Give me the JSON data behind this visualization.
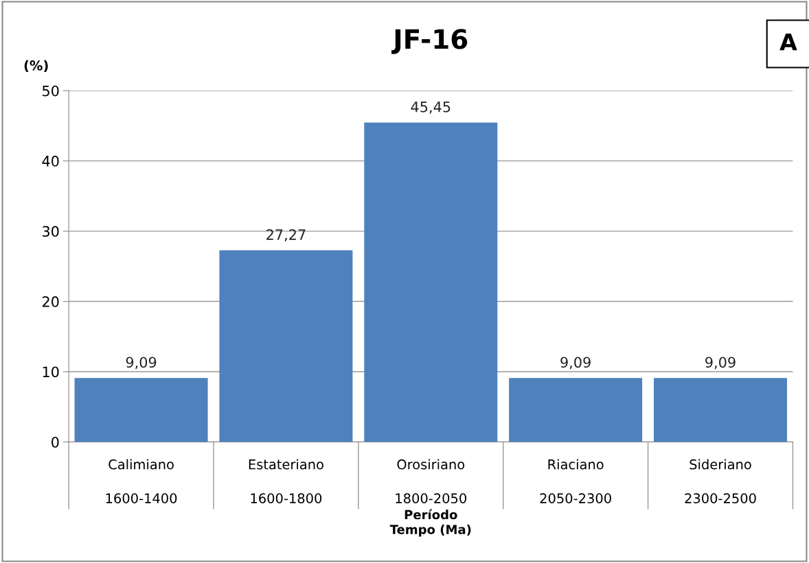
{
  "chart_data": {
    "type": "bar",
    "title": "JF-16",
    "ylabel": "(%)",
    "xlabel": "Período\nTempo (Ma)",
    "annotations": [
      "A"
    ],
    "categories": [
      "Calimiano\n\n1600-1400",
      "Estateriano\n\n1600-1800",
      "Orosiriano\n\n1800-2050",
      "Riaciano\n\n2050-2300",
      "Sideriano\n\n2300-2500"
    ],
    "values": [
      9.09,
      27.27,
      45.45,
      9.09,
      9.09
    ],
    "value_labels": [
      "9,09",
      "27,27",
      "45,45",
      "9,09",
      "9,09"
    ],
    "color": "#4f81bd",
    "ylim": [
      0,
      50
    ],
    "yticks": [
      0,
      10,
      20,
      30,
      40,
      50
    ],
    "grid": "y",
    "legend": false
  }
}
